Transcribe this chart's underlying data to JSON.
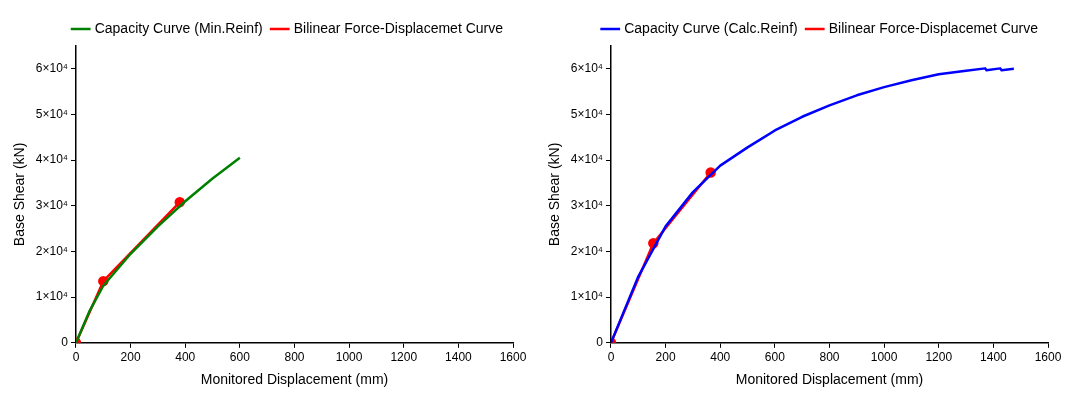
{
  "chart_data": [
    {
      "type": "line",
      "xlabel": "Monitored Displacement (mm)",
      "ylabel": "Base Shear (kN)",
      "xlim": [
        0,
        1600
      ],
      "xticks": [
        0,
        200,
        400,
        600,
        800,
        1000,
        1200,
        1400,
        1600
      ],
      "ylim": [
        0,
        65000
      ],
      "yticks": [
        0,
        {
          "value": 10000,
          "label": "1×10⁴"
        },
        {
          "value": 20000,
          "label": "2×10⁴"
        },
        {
          "value": 30000,
          "label": "3×10⁴"
        },
        {
          "value": 40000,
          "label": "4×10⁴"
        },
        {
          "value": 50000,
          "label": "5×10⁴"
        },
        {
          "value": 60000,
          "label": "6×10⁴"
        }
      ],
      "grid": false,
      "legend": "top right",
      "series": [
        {
          "name": "Capacity Curve (Min.Reinf)",
          "color": "#008000",
          "marker": "none",
          "x": [
            0,
            50,
            100,
            200,
            300,
            400,
            500,
            600
          ],
          "values": [
            0,
            7000,
            12500,
            19500,
            25500,
            31000,
            36000,
            40500
          ]
        },
        {
          "name": "Bilinear Force-Displacemet Curve",
          "color": "#ff0000",
          "marker": "circle",
          "x": [
            0,
            100,
            380
          ],
          "values": [
            0,
            13500,
            30800
          ]
        }
      ]
    },
    {
      "type": "line",
      "xlabel": "Monitored Displacement (mm)",
      "ylabel": "Base Shear (kN)",
      "xlim": [
        0,
        1600
      ],
      "xticks": [
        0,
        200,
        400,
        600,
        800,
        1000,
        1200,
        1400,
        1600
      ],
      "ylim": [
        0,
        65000
      ],
      "yticks": [
        0,
        {
          "value": 10000,
          "label": "1×10⁴"
        },
        {
          "value": 20000,
          "label": "2×10⁴"
        },
        {
          "value": 30000,
          "label": "3×10⁴"
        },
        {
          "value": 40000,
          "label": "4×10⁴"
        },
        {
          "value": 50000,
          "label": "5×10⁴"
        },
        {
          "value": 60000,
          "label": "6×10⁴"
        }
      ],
      "grid": false,
      "legend": "top right",
      "series": [
        {
          "name": "Capacity Curve (Calc.Reinf)",
          "color": "#0000ff",
          "marker": "none",
          "x": [
            0,
            100,
            200,
            300,
            400,
            500,
            600,
            700,
            800,
            900,
            1000,
            1100,
            1200,
            1300,
            1370,
            1375,
            1425,
            1430,
            1475
          ],
          "values": [
            0,
            14500,
            25500,
            33000,
            38800,
            42800,
            46500,
            49500,
            52000,
            54200,
            56000,
            57500,
            58800,
            59600,
            60100,
            59700,
            60100,
            59700,
            60000
          ]
        },
        {
          "name": "Bilinear Force-Displacemet Curve",
          "color": "#ff0000",
          "marker": "circle",
          "x": [
            0,
            155,
            365
          ],
          "values": [
            0,
            21800,
            37300
          ]
        }
      ]
    }
  ]
}
